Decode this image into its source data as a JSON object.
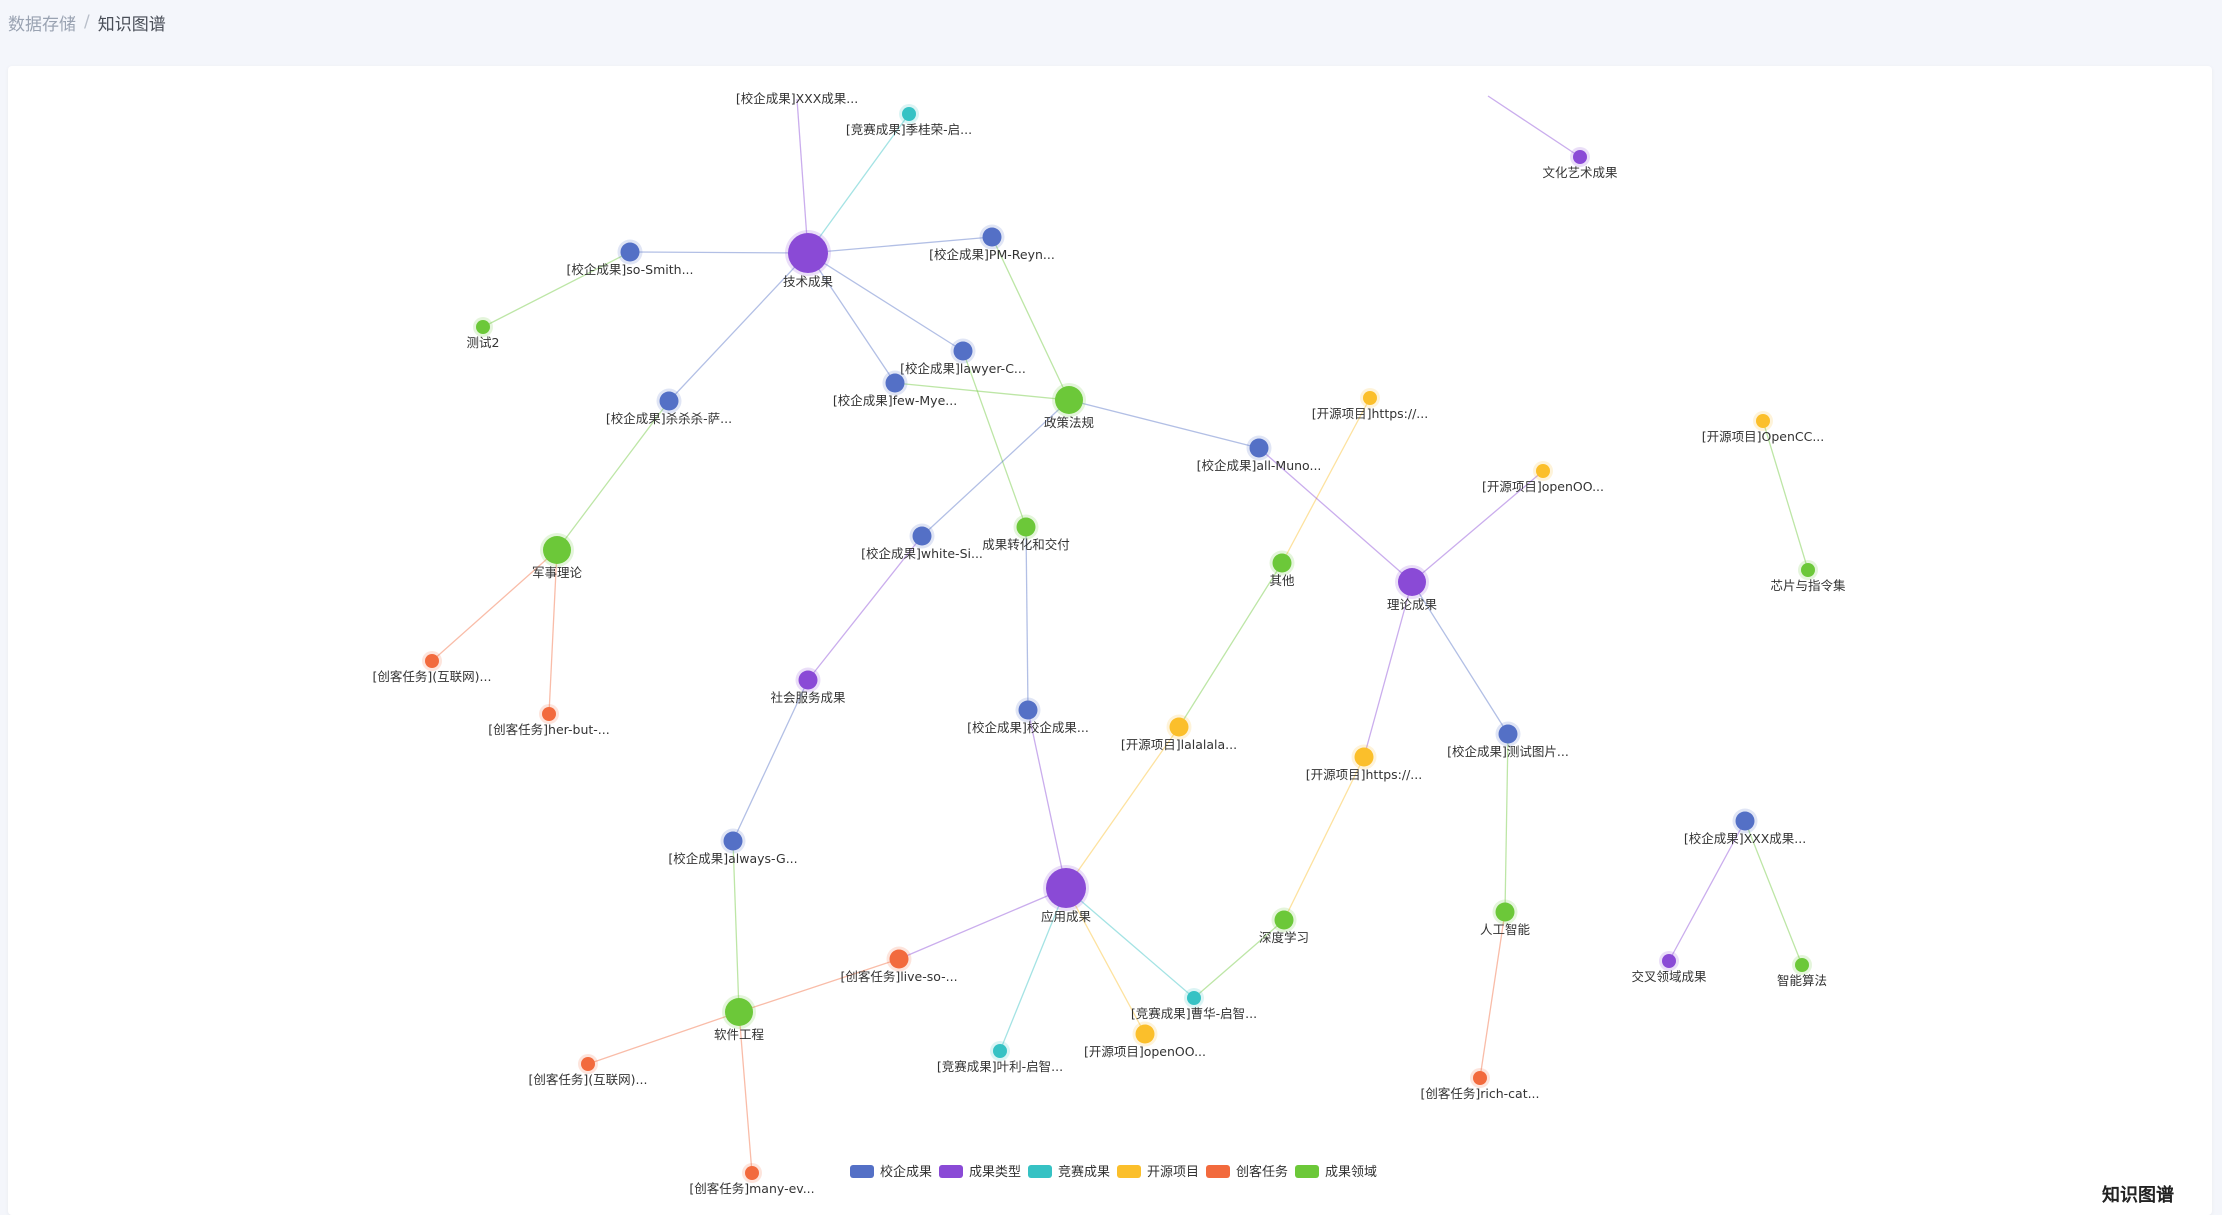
{
  "breadcrumb": {
    "parent": "数据存储",
    "separator": "/",
    "current": "知识图谱"
  },
  "graph_title": "知识图谱",
  "categories": [
    {
      "name": "校企成果",
      "color": "#5470c6"
    },
    {
      "name": "成果类型",
      "color": "#8a4ad6"
    },
    {
      "name": "竞赛成果",
      "color": "#36c2c4"
    },
    {
      "name": "开源项目",
      "color": "#fbbf2b"
    },
    {
      "name": "创客任务",
      "color": "#f26a3d"
    },
    {
      "name": "成果领域",
      "color": "#6cc839"
    }
  ],
  "nodes": [
    {
      "id": "n1",
      "label": "技术成果",
      "cat": 1,
      "size": "xl"
    },
    {
      "id": "n2",
      "label": "[校企成果]XXX成果...",
      "cat": 0,
      "size": "none"
    },
    {
      "id": "n3",
      "label": "[竞赛成果]季桂荣-启...",
      "cat": 2,
      "size": "s"
    },
    {
      "id": "n4",
      "label": "[校企成果]so-Smith...",
      "cat": 0,
      "size": "m"
    },
    {
      "id": "n5",
      "label": "测试2",
      "cat": 5,
      "size": "s"
    },
    {
      "id": "n6",
      "label": "[校企成果]PM-Reyn...",
      "cat": 0,
      "size": "m"
    },
    {
      "id": "n7",
      "label": "[校企成果]lawyer-C...",
      "cat": 0,
      "size": "m"
    },
    {
      "id": "n8",
      "label": "[校企成果]few-Mye...",
      "cat": 0,
      "size": "m"
    },
    {
      "id": "n9",
      "label": "政策法规",
      "cat": 5,
      "size": "l"
    },
    {
      "id": "n10",
      "label": "[校企成果]杀杀杀-萨...",
      "cat": 0,
      "size": "m"
    },
    {
      "id": "n11",
      "label": "军事理论",
      "cat": 5,
      "size": "l"
    },
    {
      "id": "n12",
      "label": "[创客任务](互联网)...",
      "cat": 4,
      "size": "s"
    },
    {
      "id": "n13",
      "label": "[创客任务]her-but-...",
      "cat": 4,
      "size": "s"
    },
    {
      "id": "n14",
      "label": "[校企成果]white-Si...",
      "cat": 0,
      "size": "m"
    },
    {
      "id": "n15",
      "label": "成果转化和交付",
      "cat": 5,
      "size": "m"
    },
    {
      "id": "n16",
      "label": "社会服务成果",
      "cat": 1,
      "size": "m"
    },
    {
      "id": "n17",
      "label": "[校企成果]校企成果...",
      "cat": 0,
      "size": "m"
    },
    {
      "id": "n18",
      "label": "[校企成果]always-G...",
      "cat": 0,
      "size": "m"
    },
    {
      "id": "n19",
      "label": "应用成果",
      "cat": 1,
      "size": "xl"
    },
    {
      "id": "n20",
      "label": "软件工程",
      "cat": 5,
      "size": "l"
    },
    {
      "id": "n21",
      "label": "[创客任务]live-so-...",
      "cat": 4,
      "size": "m"
    },
    {
      "id": "n22",
      "label": "[创客任务](互联网)...",
      "cat": 4,
      "size": "s"
    },
    {
      "id": "n23",
      "label": "[创客任务]many-ev...",
      "cat": 4,
      "size": "s"
    },
    {
      "id": "n24",
      "label": "[竞赛成果]叶利-启智...",
      "cat": 2,
      "size": "s"
    },
    {
      "id": "n25",
      "label": "[开源项目]openOO...",
      "cat": 3,
      "size": "m"
    },
    {
      "id": "n26",
      "label": "[竞赛成果]曹华-启智...",
      "cat": 2,
      "size": "s"
    },
    {
      "id": "n27",
      "label": "[开源项目]lalalala...",
      "cat": 3,
      "size": "m"
    },
    {
      "id": "n28",
      "label": "深度学习",
      "cat": 5,
      "size": "m"
    },
    {
      "id": "n29",
      "label": "[开源项目]https://...",
      "cat": 3,
      "size": "m"
    },
    {
      "id": "n30",
      "label": "理论成果",
      "cat": 1,
      "size": "l"
    },
    {
      "id": "n31",
      "label": "[校企成果]all-Muno...",
      "cat": 0,
      "size": "m"
    },
    {
      "id": "n32",
      "label": "[开源项目]https://...",
      "cat": 3,
      "size": "s"
    },
    {
      "id": "n33",
      "label": "其他",
      "cat": 5,
      "size": "m"
    },
    {
      "id": "n34",
      "label": "[开源项目]openOO...",
      "cat": 3,
      "size": "s"
    },
    {
      "id": "n35",
      "label": "[校企成果]测试图片...",
      "cat": 0,
      "size": "m"
    },
    {
      "id": "n36",
      "label": "人工智能",
      "cat": 5,
      "size": "m"
    },
    {
      "id": "n37",
      "label": "[创客任务]rich-cat...",
      "cat": 4,
      "size": "s"
    },
    {
      "id": "n38",
      "label": "文化艺术成果",
      "cat": 1,
      "size": "s"
    },
    {
      "id": "n39",
      "label": "[开源项目]OpenCC...",
      "cat": 3,
      "size": "s"
    },
    {
      "id": "n40",
      "label": "芯片与指令集",
      "cat": 5,
      "size": "s"
    },
    {
      "id": "n41",
      "label": "[校企成果]XXX成果...",
      "cat": 0,
      "size": "m"
    },
    {
      "id": "n42",
      "label": "交叉领域成果",
      "cat": 1,
      "size": "s"
    },
    {
      "id": "n43",
      "label": "智能算法",
      "cat": 5,
      "size": "s"
    }
  ],
  "links": [
    [
      "n1",
      "n2"
    ],
    [
      "n1",
      "n3"
    ],
    [
      "n1",
      "n4"
    ],
    [
      "n4",
      "n5"
    ],
    [
      "n1",
      "n6"
    ],
    [
      "n1",
      "n7"
    ],
    [
      "n1",
      "n8"
    ],
    [
      "n1",
      "n10"
    ],
    [
      "n8",
      "n9"
    ],
    [
      "n6",
      "n9"
    ],
    [
      "n7",
      "n15"
    ],
    [
      "n9",
      "n14"
    ],
    [
      "n9",
      "n31"
    ],
    [
      "n10",
      "n11"
    ],
    [
      "n11",
      "n12"
    ],
    [
      "n11",
      "n13"
    ],
    [
      "n14",
      "n16"
    ],
    [
      "n15",
      "n17"
    ],
    [
      "n16",
      "n18"
    ],
    [
      "n17",
      "n19"
    ],
    [
      "n18",
      "n20"
    ],
    [
      "n20",
      "n21"
    ],
    [
      "n20",
      "n22"
    ],
    [
      "n20",
      "n23"
    ],
    [
      "n21",
      "n19"
    ],
    [
      "n19",
      "n24"
    ],
    [
      "n19",
      "n25"
    ],
    [
      "n19",
      "n26"
    ],
    [
      "n19",
      "n27"
    ],
    [
      "n27",
      "n33"
    ],
    [
      "n33",
      "n32"
    ],
    [
      "n26",
      "n28"
    ],
    [
      "n28",
      "n29"
    ],
    [
      "n29",
      "n30"
    ],
    [
      "n31",
      "n30"
    ],
    [
      "n34",
      "n30"
    ],
    [
      "n30",
      "n35"
    ],
    [
      "n35",
      "n36"
    ],
    [
      "n36",
      "n37"
    ],
    [
      "n38",
      "n39_offscreen"
    ],
    [
      "n39",
      "n40"
    ],
    [
      "n41",
      "n42"
    ],
    [
      "n41",
      "n43"
    ]
  ]
}
